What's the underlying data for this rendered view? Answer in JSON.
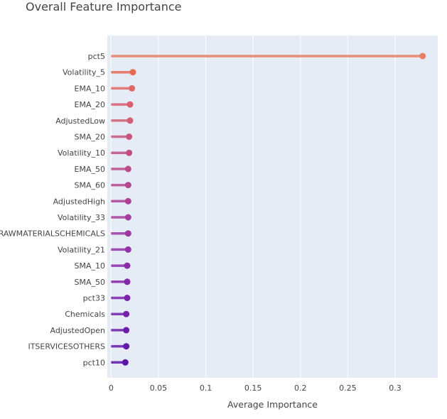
{
  "chart_data": {
    "type": "lollipop",
    "title": "Overall Feature Importance",
    "xlabel": "Average Importance",
    "ylabel": "",
    "xlim": [
      -0.004,
      0.345
    ],
    "xticks": [
      0,
      0.05,
      0.1,
      0.15,
      0.2,
      0.25,
      0.3
    ],
    "xtick_labels": [
      "0",
      "0.05",
      "0.1",
      "0.15",
      "0.2",
      "0.25",
      "0.3"
    ],
    "grid": true,
    "legend": "none",
    "background_color": "#e5ecf6",
    "categories": [
      "pct5",
      "Volatility_5",
      "EMA_10",
      "EMA_20",
      "AdjustedLow",
      "SMA_20",
      "Volatility_10",
      "EMA_50",
      "SMA_60",
      "AdjustedHigh",
      "Volatility_33",
      "RAWMATERIALSCHEMICALS",
      "Volatility_21",
      "SMA_10",
      "SMA_50",
      "pct33",
      "Chemicals",
      "AdjustedOpen",
      "ITSERVICESOTHERS",
      "pct10"
    ],
    "values": [
      0.329,
      0.023,
      0.022,
      0.02,
      0.02,
      0.019,
      0.019,
      0.018,
      0.018,
      0.018,
      0.018,
      0.018,
      0.018,
      0.017,
      0.017,
      0.017,
      0.016,
      0.016,
      0.016,
      0.015
    ],
    "colors": [
      "#ea7d62",
      "#e76a52",
      "#e06865",
      "#d85d6e",
      "#d15f73",
      "#c8567e",
      "#c04e85",
      "#bb4a8a",
      "#b44692",
      "#ad3f97",
      "#a53d9e",
      "#9d36a2",
      "#9431a6",
      "#8c2ba8",
      "#8326aa",
      "#7c22ab",
      "#7520ad",
      "#6d1cac",
      "#651aab",
      "#5a17a8"
    ]
  }
}
